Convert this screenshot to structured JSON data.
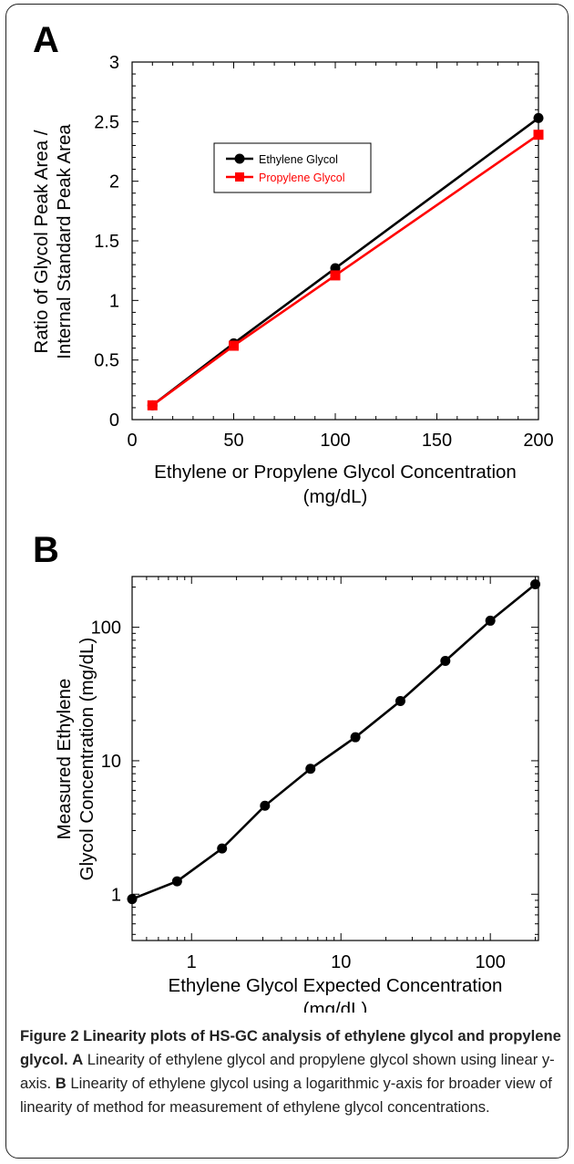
{
  "chart_data": [
    {
      "panel": "A",
      "type": "line",
      "xlabel": [
        "Ethylene or Propylene Glycol Concentration",
        "(mg/dL)"
      ],
      "ylabel": [
        "Ratio of Glycol Peak Area /",
        "Internal Standard Peak Area"
      ],
      "xlim": [
        0,
        200
      ],
      "ylim": [
        0,
        3
      ],
      "xticks": [
        "0",
        "50",
        "100",
        "150",
        "200"
      ],
      "yticks": [
        "0",
        "0.5",
        "1",
        "1.5",
        "2",
        "2.5",
        "3"
      ],
      "legend_position": "upper-left",
      "series": [
        {
          "name": "Ethylene Glycol",
          "color": "#000000",
          "marker": "circle",
          "x": [
            10,
            50,
            100,
            200
          ],
          "y": [
            0.12,
            0.64,
            1.27,
            2.53
          ]
        },
        {
          "name": "Propylene Glycol",
          "color": "#ff0000",
          "marker": "square",
          "x": [
            10,
            50,
            100,
            200
          ],
          "y": [
            0.12,
            0.62,
            1.21,
            2.39
          ]
        }
      ]
    },
    {
      "panel": "B",
      "type": "line",
      "xlabel": [
        "Ethylene Glycol Expected Concentration",
        "(mg/dL)"
      ],
      "ylabel": [
        "Measured Ethylene",
        "Glycol Concentration (mg/dL)"
      ],
      "xscale": "log",
      "yscale": "log",
      "xlim": [
        0.4,
        210
      ],
      "ylim": [
        0.45,
        240
      ],
      "xticks": [
        "1",
        "10",
        "100"
      ],
      "yticks": [
        "1",
        "10",
        "100"
      ],
      "series": [
        {
          "name": "",
          "color": "#000000",
          "marker": "circle",
          "x": [
            0.4,
            0.8,
            1.6,
            3.1,
            6.25,
            12.5,
            25,
            50,
            100,
            200
          ],
          "y": [
            0.92,
            1.25,
            2.2,
            4.6,
            8.7,
            15,
            28,
            56,
            112,
            210
          ]
        }
      ]
    }
  ],
  "caption": {
    "title": "Figure 2 Linearity plots of HS-GC analysis of ethylene glycol and propylene glycol.",
    "a_label": "A",
    "a_text": "Linearity of ethylene glycol and propylene glycol shown using linear y-axis.",
    "b_label": "B",
    "b_text": "Linearity of ethylene glycol using a logarithmic y-axis for broader view of linearity of method for measurement of ethylene glycol concentrations."
  }
}
